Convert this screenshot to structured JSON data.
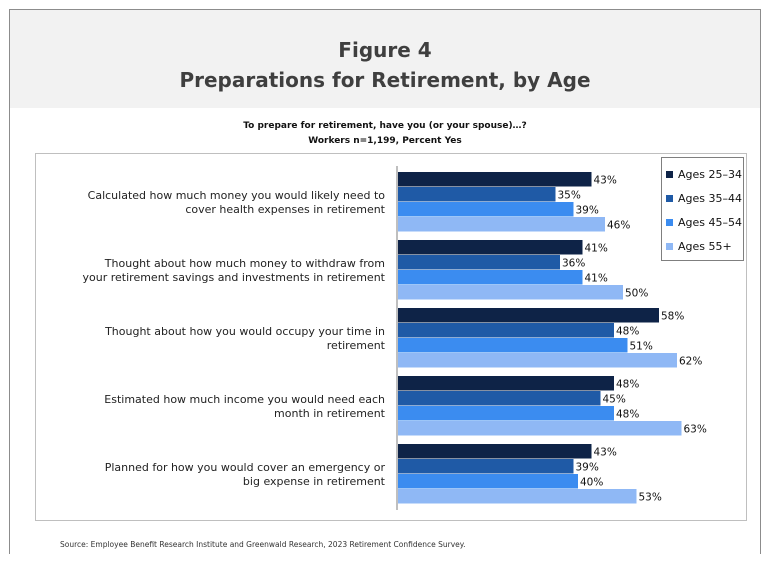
{
  "header": {
    "figure_label": "Figure 4",
    "title": "Preparations for Retirement, by Age"
  },
  "subtitle_line1": "To prepare for retirement, have you (or your spouse)…?",
  "subtitle_line2": "Workers n=1,199, Percent Yes",
  "source": "Source:  Employee Benefit Research Institute and Greenwald Research, 2023 Retirement Confidence Survey.",
  "colors": {
    "ages_25_34": "#0e2347",
    "ages_35_44": "#1f5aa6",
    "ages_45_54": "#3b8cf0",
    "ages_55_plus": "#8fb8f5"
  },
  "chart_data": {
    "type": "bar",
    "orientation": "horizontal",
    "categories": [
      [
        "Calculated how much money you would likely need to",
        "cover health expenses in retirement"
      ],
      [
        "Thought about how much money to withdraw from",
        "your retirement savings and investments in retirement"
      ],
      [
        "Thought about how you would occupy your time in",
        "retirement"
      ],
      [
        "Estimated how much income you would need each",
        "month in retirement"
      ],
      [
        "Planned for how you would cover an emergency or",
        "big expense in retirement"
      ]
    ],
    "series": [
      {
        "name": "Ages 25–34",
        "color": "#0e2347",
        "values": [
          43,
          41,
          58,
          48,
          43
        ]
      },
      {
        "name": "Ages 35–44",
        "color": "#1f5aa6",
        "values": [
          35,
          36,
          48,
          45,
          39
        ]
      },
      {
        "name": "Ages 45–54",
        "color": "#3b8cf0",
        "values": [
          39,
          41,
          51,
          48,
          40
        ]
      },
      {
        "name": "Ages 55+",
        "color": "#8fb8f5",
        "values": [
          46,
          50,
          62,
          63,
          53
        ]
      }
    ],
    "value_suffix": "%",
    "xlim": [
      0,
      100
    ],
    "grid": false,
    "legend_position": "top-right"
  }
}
